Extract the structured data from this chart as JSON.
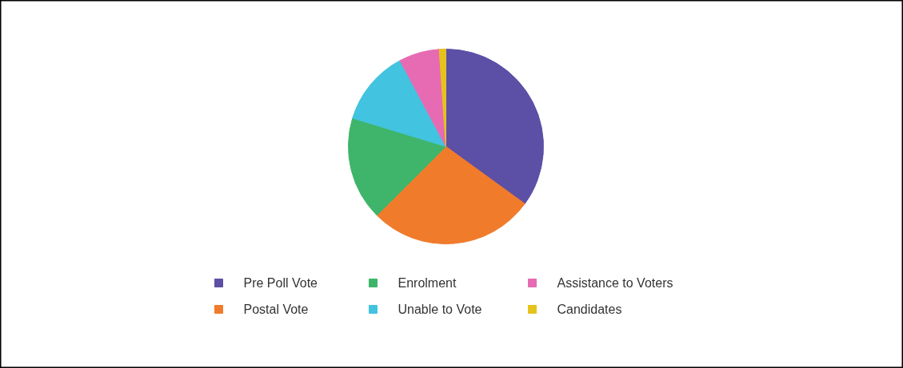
{
  "chart_data": {
    "type": "pie",
    "categories": [
      "Pre Poll Vote",
      "Postal Vote",
      "Enrolment",
      "Unable to Vote",
      "Assistance to Voters",
      "Candidates"
    ],
    "values": [
      35,
      27.5,
      17.2,
      12.5,
      6.7,
      1.1
    ],
    "colors": [
      "#5b4fa6",
      "#f07b2b",
      "#3fb56b",
      "#42c3e0",
      "#e76bb2",
      "#e6c21c"
    ],
    "legend": "bottom"
  }
}
